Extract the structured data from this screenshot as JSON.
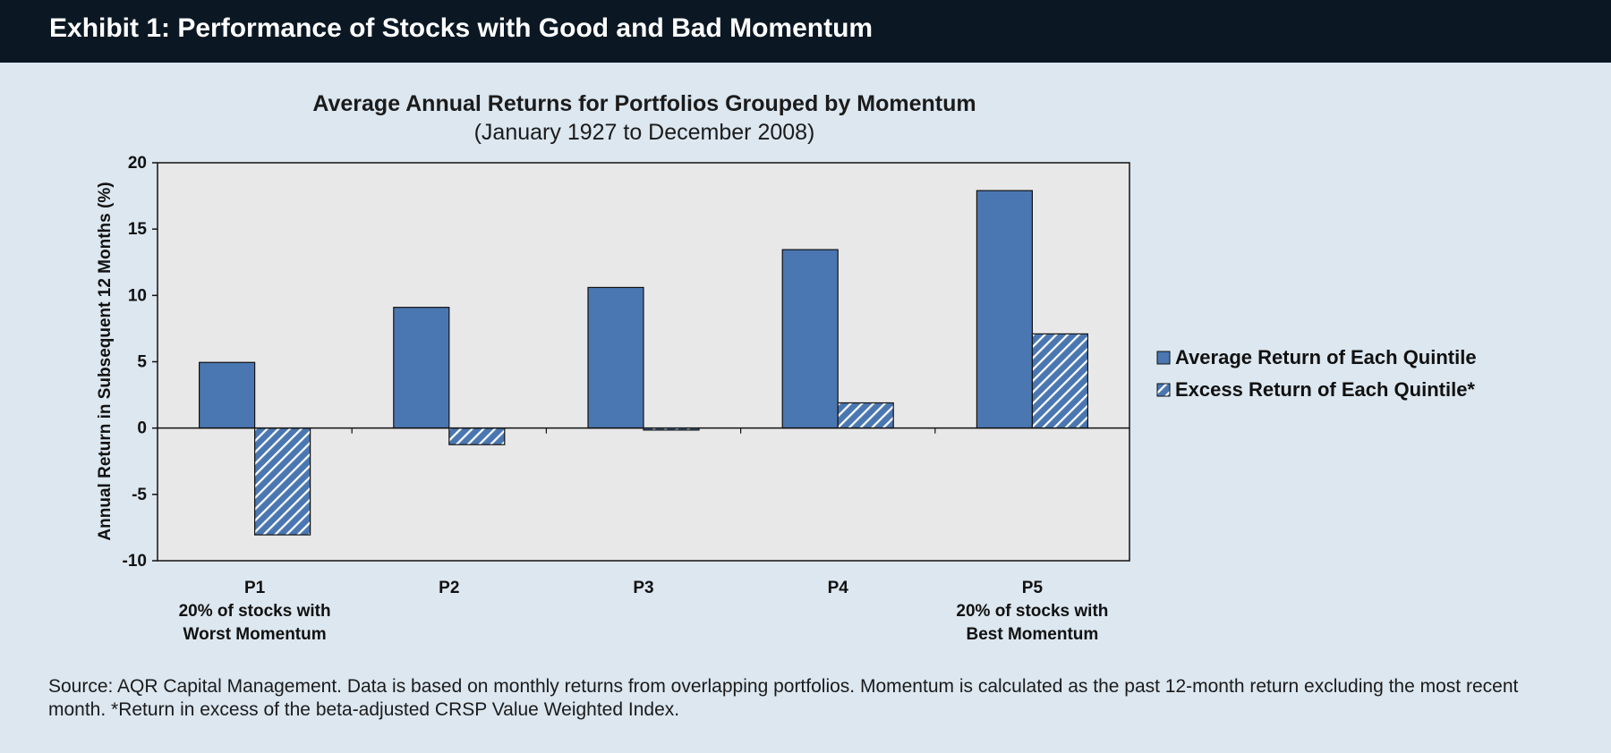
{
  "header": {
    "title": "Exhibit 1: Performance of Stocks with Good and Bad Momentum"
  },
  "chart_data": {
    "type": "bar",
    "title": "Average Annual Returns for Portfolios Grouped by Momentum",
    "subtitle": "(January 1927 to December 2008)",
    "ylabel": "Annual Return in Subsequent 12 Months (%)",
    "xlabel": "",
    "ylim": [
      -10,
      20
    ],
    "yticks": [
      20,
      15,
      10,
      5,
      0,
      -5,
      -10
    ],
    "categories": [
      [
        "P1",
        "20% of stocks with",
        "Worst Momentum"
      ],
      [
        "P2"
      ],
      [
        "P3"
      ],
      [
        "P4"
      ],
      [
        "P5",
        "20% of stocks with",
        "Best Momentum"
      ]
    ],
    "series": [
      {
        "name": "Average Return of Each Quintile",
        "pattern": "solid",
        "values": [
          4.95,
          9.1,
          10.6,
          13.45,
          17.9
        ]
      },
      {
        "name": "Excess Return of Each Quintile*",
        "pattern": "hatched",
        "values": [
          -8.05,
          -1.25,
          -0.15,
          1.9,
          7.1
        ]
      }
    ],
    "legend_position": "right",
    "grid": false,
    "colors": {
      "bar": "#4a77b1",
      "plot_bg": "#e8e8e8",
      "hatch": "#ffffff"
    }
  },
  "source": "Source: AQR Capital Management. Data is based on monthly returns from overlapping portfolios. Momentum is calculated as the past 12-month return excluding the most recent month. *Return in excess of the beta-adjusted CRSP Value Weighted Index."
}
